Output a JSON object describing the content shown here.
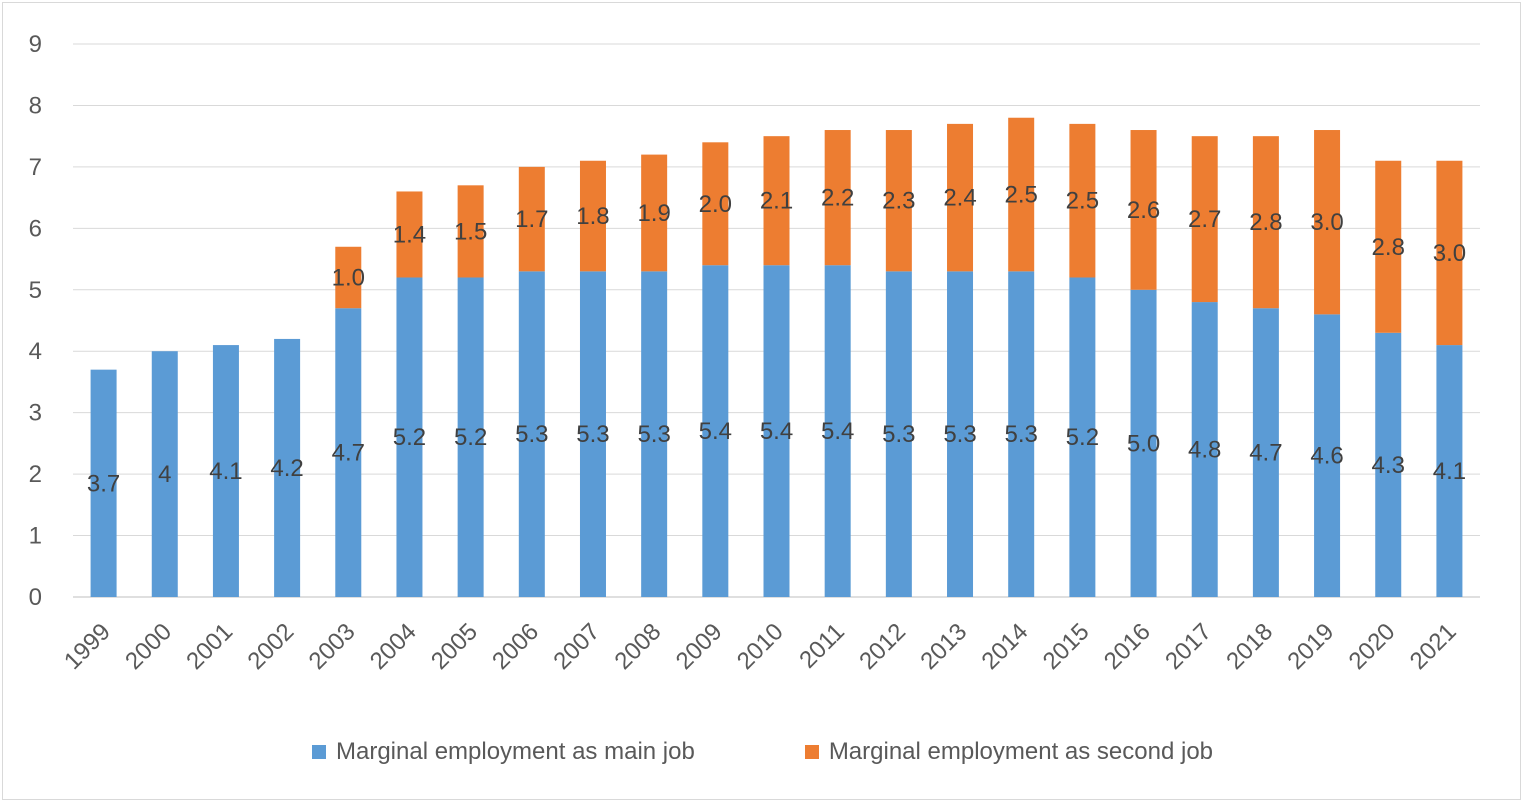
{
  "chart_data": {
    "type": "bar",
    "stacked": true,
    "categories": [
      "1999",
      "2000",
      "2001",
      "2002",
      "2003",
      "2004",
      "2005",
      "2006",
      "2007",
      "2008",
      "2009",
      "2010",
      "2011",
      "2012",
      "2013",
      "2014",
      "2015",
      "2016",
      "2017",
      "2018",
      "2019",
      "2020",
      "2021"
    ],
    "series": [
      {
        "name": "Marginal employment as main job",
        "color": "#5b9bd5",
        "values": [
          3.7,
          4,
          4.1,
          4.2,
          4.7,
          5.2,
          5.2,
          5.3,
          5.3,
          5.3,
          5.4,
          5.4,
          5.4,
          5.3,
          5.3,
          5.3,
          5.2,
          5.0,
          4.8,
          4.7,
          4.6,
          4.3,
          4.1
        ],
        "labels": [
          "3.7",
          "4",
          "4.1",
          "4.2",
          "4.7",
          "5.2",
          "5.2",
          "5.3",
          "5.3",
          "5.3",
          "5.4",
          "5.4",
          "5.4",
          "5.3",
          "5.3",
          "5.3",
          "5.2",
          "5.0",
          "4.8",
          "4.7",
          "4.6",
          "4.3",
          "4.1"
        ]
      },
      {
        "name": "Marginal employment as second job",
        "color": "#ed7d31",
        "values": [
          null,
          null,
          null,
          null,
          1.0,
          1.4,
          1.5,
          1.7,
          1.8,
          1.9,
          2.0,
          2.1,
          2.2,
          2.3,
          2.4,
          2.5,
          2.5,
          2.6,
          2.7,
          2.8,
          3.0,
          2.8,
          3.0
        ],
        "labels": [
          "",
          "",
          "",
          "",
          "1.0",
          "1.4",
          "1.5",
          "1.7",
          "1.8",
          "1.9",
          "2.0",
          "2.1",
          "2.2",
          "2.3",
          "2.4",
          "2.5",
          "2.5",
          "2.6",
          "2.7",
          "2.8",
          "3.0",
          "2.8",
          "3.0"
        ]
      }
    ],
    "totals": [
      3.7,
      4.0,
      4.1,
      4.2,
      5.7,
      6.6,
      6.7,
      7.0,
      7.1,
      7.2,
      7.4,
      7.5,
      7.6,
      7.6,
      7.7,
      7.8,
      7.7,
      7.6,
      7.5,
      7.5,
      7.6,
      7.1,
      7.1
    ],
    "ylim": [
      0,
      9
    ],
    "yticks": [
      "0",
      "1",
      "2",
      "3",
      "4",
      "5",
      "6",
      "7",
      "8",
      "9"
    ],
    "grid": true,
    "legend_position": "bottom",
    "title": "",
    "xlabel": "",
    "ylabel": ""
  }
}
